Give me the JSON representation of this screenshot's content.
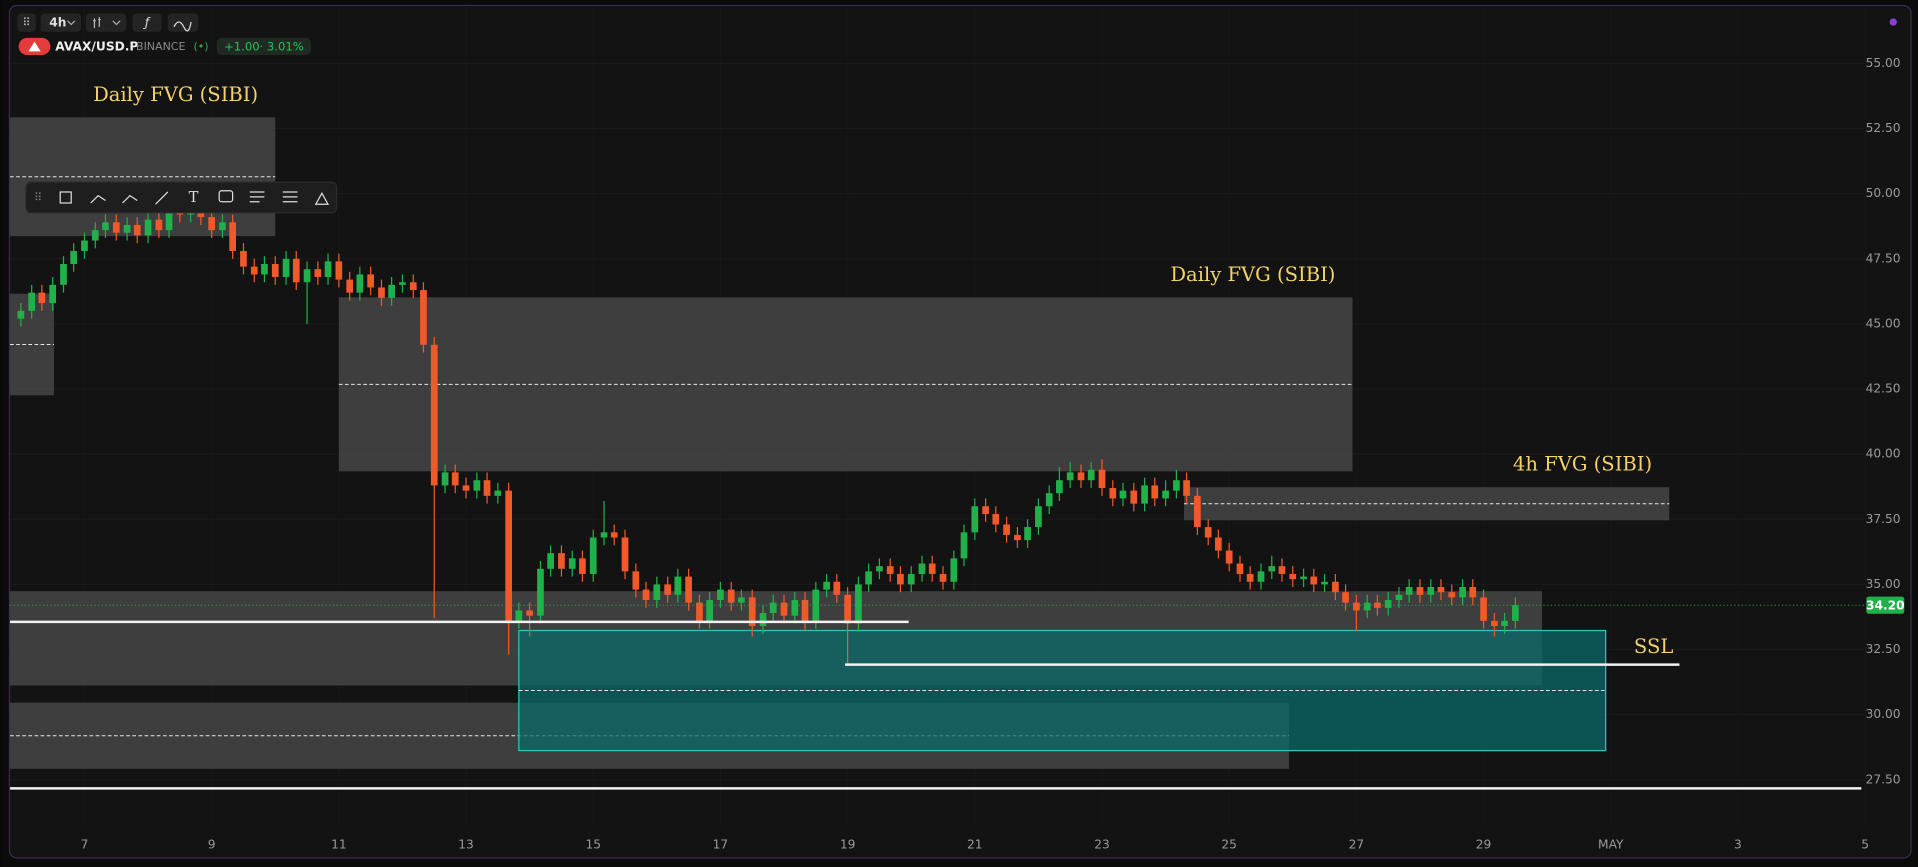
{
  "ui": {
    "interval": "4h",
    "symbol": "AVAX/USD.P",
    "exchange": "BINANCE",
    "change": "+1.00",
    "change_pct": "3.01%"
  },
  "chart_data": {
    "type": "candlestick",
    "up_color": "#22b04b",
    "down_color": "#f0592a",
    "xlim": [
      5.83,
      35.0
    ],
    "ylim": [
      25.7,
      57.2
    ],
    "xticks": [
      7,
      9,
      11,
      13,
      15,
      17,
      19,
      21,
      23,
      25,
      27,
      29,
      {
        "value": 31,
        "label": "MAY"
      },
      {
        "value": 33,
        "label": "3"
      },
      {
        "value": 35,
        "label": "5"
      }
    ],
    "yticks": [
      {
        "value": 27.5,
        "label": "27.50"
      },
      {
        "value": 30,
        "label": "30.00"
      },
      {
        "value": 32.5,
        "label": "32.50"
      },
      {
        "value": 35,
        "label": "35.00"
      },
      {
        "value": 37.5,
        "label": "37.50"
      },
      {
        "value": 40,
        "label": "40.00"
      },
      {
        "value": 42.5,
        "label": "42.50"
      },
      {
        "value": 45,
        "label": "45.00"
      },
      {
        "value": 47.5,
        "label": "47.50"
      },
      {
        "value": 50,
        "label": "50.00"
      },
      {
        "value": 52.5,
        "label": "52.50"
      },
      {
        "value": 55,
        "label": "55.00"
      }
    ],
    "last_price": {
      "value": 34.2,
      "label": "34.20"
    },
    "zones": [
      {
        "label": "Daily FVG (SIBI)",
        "x": [
          5.83,
          10.0
        ],
        "y": [
          48.37,
          52.93
        ],
        "color": "#4a4a4a"
      },
      {
        "x": [
          5.83,
          6.52
        ],
        "y": [
          42.26,
          46.16
        ],
        "color": "#4a4a4a"
      },
      {
        "label": "Daily FVG (SIBI)",
        "x": [
          11.0,
          26.94
        ],
        "y": [
          39.34,
          46.02
        ],
        "color": "#4a4a4a"
      },
      {
        "label": "4h FVG (SIBI)",
        "x": [
          24.29,
          31.92
        ],
        "y": [
          37.46,
          38.73
        ],
        "color": "#4a4a4a"
      },
      {
        "x": [
          5.83,
          29.92
        ],
        "y": [
          31.12,
          34.74
        ],
        "color": "#4a4a4a",
        "no_mid": true
      },
      {
        "x": [
          5.83,
          25.94
        ],
        "y": [
          27.92,
          30.46
        ],
        "color": "#4a4a4a"
      },
      {
        "x": [
          13.83,
          30.92
        ],
        "y": [
          28.62,
          33.23
        ],
        "color": "#0b6b6b",
        "border": "#2ec4c4"
      }
    ],
    "levels": [
      {
        "x": [
          5.83,
          19.96
        ],
        "y": 33.56
      },
      {
        "label": "SSL",
        "x": [
          18.96,
          32.08
        ],
        "y": 31.92
      },
      {
        "x": [
          5.83,
          34.94
        ],
        "y": 27.17
      }
    ],
    "x": [
      6,
      6.17,
      6.33,
      6.5,
      6.67,
      6.83,
      7,
      7.17,
      7.33,
      7.5,
      7.67,
      7.83,
      8,
      8.17,
      8.33,
      8.5,
      8.67,
      8.83,
      9,
      9.17,
      9.33,
      9.5,
      9.67,
      9.83,
      10,
      10.17,
      10.33,
      10.5,
      10.67,
      10.83,
      11,
      11.17,
      11.33,
      11.5,
      11.67,
      11.83,
      12,
      12.17,
      12.33,
      12.5,
      12.67,
      12.83,
      13,
      13.17,
      13.33,
      13.5,
      13.67,
      13.83,
      14,
      14.17,
      14.33,
      14.5,
      14.67,
      14.83,
      15,
      15.17,
      15.33,
      15.5,
      15.67,
      15.83,
      16,
      16.17,
      16.33,
      16.5,
      16.67,
      16.83,
      17,
      17.17,
      17.33,
      17.5,
      17.67,
      17.83,
      18,
      18.17,
      18.33,
      18.5,
      18.67,
      18.83,
      19,
      19.17,
      19.33,
      19.5,
      19.67,
      19.83,
      20,
      20.17,
      20.33,
      20.5,
      20.67,
      20.83,
      21,
      21.17,
      21.33,
      21.5,
      21.67,
      21.83,
      22,
      22.17,
      22.33,
      22.5,
      22.67,
      22.83,
      23,
      23.17,
      23.33,
      23.5,
      23.67,
      23.83,
      24,
      24.17,
      24.33,
      24.5,
      24.67,
      24.83,
      25,
      25.17,
      25.33,
      25.5,
      25.67,
      25.83,
      26,
      26.17,
      26.33,
      26.5,
      26.67,
      26.83,
      27,
      27.17,
      27.33,
      27.5,
      27.67,
      27.83,
      28,
      28.17,
      28.33,
      28.5,
      28.67,
      28.83,
      29,
      29.17,
      29.33,
      29.5
    ],
    "ohlc": [
      [
        45.2,
        45.8,
        44.9,
        45.5
      ],
      [
        45.5,
        46.5,
        45.2,
        46.2
      ],
      [
        46.2,
        46.5,
        45.5,
        45.8
      ],
      [
        45.8,
        46.8,
        45.5,
        46.5
      ],
      [
        46.5,
        47.6,
        46.2,
        47.3
      ],
      [
        47.3,
        48.1,
        47.0,
        47.8
      ],
      [
        47.8,
        48.5,
        47.5,
        48.2
      ],
      [
        48.2,
        48.9,
        47.9,
        48.6
      ],
      [
        48.6,
        49.2,
        48.3,
        48.9
      ],
      [
        48.9,
        49.2,
        48.2,
        48.5
      ],
      [
        48.5,
        49.1,
        48.2,
        48.8
      ],
      [
        48.8,
        49.1,
        48.1,
        48.4
      ],
      [
        48.4,
        49.3,
        48.1,
        49.0
      ],
      [
        49.0,
        49.3,
        48.3,
        48.6
      ],
      [
        48.6,
        49.7,
        48.3,
        49.4
      ],
      [
        49.4,
        49.7,
        48.9,
        49.2
      ],
      [
        49.2,
        49.9,
        48.9,
        49.6
      ],
      [
        49.6,
        49.9,
        48.8,
        49.1
      ],
      [
        49.1,
        49.4,
        48.3,
        48.6
      ],
      [
        48.6,
        49.2,
        48.3,
        48.9
      ],
      [
        48.9,
        49.2,
        47.5,
        47.8
      ],
      [
        47.8,
        48.1,
        46.9,
        47.2
      ],
      [
        47.2,
        47.5,
        46.6,
        46.9
      ],
      [
        46.9,
        47.6,
        46.6,
        47.3
      ],
      [
        47.3,
        47.6,
        46.5,
        46.8
      ],
      [
        46.8,
        47.8,
        46.5,
        47.5
      ],
      [
        47.5,
        47.8,
        46.3,
        46.6
      ],
      [
        46.6,
        47.4,
        45.0,
        47.1
      ],
      [
        47.1,
        47.4,
        46.5,
        46.8
      ],
      [
        46.8,
        47.7,
        46.5,
        47.4
      ],
      [
        47.4,
        47.7,
        46.4,
        46.7
      ],
      [
        46.7,
        47.0,
        45.9,
        46.2
      ],
      [
        46.2,
        47.2,
        45.9,
        46.9
      ],
      [
        46.9,
        47.2,
        46.1,
        46.4
      ],
      [
        46.4,
        46.7,
        45.7,
        46.0
      ],
      [
        46.0,
        46.8,
        45.7,
        46.5
      ],
      [
        46.5,
        46.9,
        46.2,
        46.6
      ],
      [
        46.6,
        46.9,
        46.0,
        46.3
      ],
      [
        46.3,
        46.6,
        43.9,
        44.2
      ],
      [
        44.2,
        44.5,
        33.7,
        38.8
      ],
      [
        38.8,
        39.6,
        38.5,
        39.3
      ],
      [
        39.3,
        39.6,
        38.5,
        38.8
      ],
      [
        38.8,
        39.1,
        38.3,
        38.6
      ],
      [
        38.6,
        39.3,
        38.3,
        39.0
      ],
      [
        39.0,
        39.3,
        38.1,
        38.4
      ],
      [
        38.4,
        38.9,
        38.1,
        38.6
      ],
      [
        38.6,
        38.9,
        32.3,
        33.6
      ],
      [
        33.6,
        34.3,
        33.3,
        34.0
      ],
      [
        34.0,
        34.3,
        33.0,
        33.8
      ],
      [
        33.8,
        35.9,
        33.5,
        35.6
      ],
      [
        35.6,
        36.5,
        35.3,
        36.2
      ],
      [
        36.2,
        36.5,
        35.3,
        35.6
      ],
      [
        35.6,
        36.3,
        35.3,
        36.0
      ],
      [
        36.0,
        36.3,
        35.1,
        35.4
      ],
      [
        35.4,
        37.1,
        35.1,
        36.8
      ],
      [
        36.8,
        38.2,
        36.5,
        37.0
      ],
      [
        37.0,
        37.3,
        36.5,
        36.8
      ],
      [
        36.8,
        37.1,
        35.2,
        35.5
      ],
      [
        35.5,
        35.8,
        34.5,
        34.8
      ],
      [
        34.8,
        35.1,
        34.1,
        34.4
      ],
      [
        34.4,
        35.3,
        34.1,
        35.0
      ],
      [
        35.0,
        35.3,
        34.3,
        34.6
      ],
      [
        34.6,
        35.6,
        34.3,
        35.3
      ],
      [
        35.3,
        35.6,
        34.0,
        34.3
      ],
      [
        34.3,
        34.6,
        33.3,
        33.6
      ],
      [
        33.6,
        34.7,
        33.3,
        34.4
      ],
      [
        34.4,
        35.1,
        34.1,
        34.8
      ],
      [
        34.8,
        35.1,
        34.0,
        34.3
      ],
      [
        34.3,
        34.8,
        34.0,
        34.5
      ],
      [
        34.5,
        34.8,
        33.0,
        33.4
      ],
      [
        33.4,
        34.2,
        33.1,
        33.9
      ],
      [
        33.9,
        34.6,
        33.6,
        34.3
      ],
      [
        34.3,
        34.6,
        33.5,
        33.8
      ],
      [
        33.8,
        34.7,
        33.5,
        34.4
      ],
      [
        34.4,
        34.7,
        33.2,
        33.6
      ],
      [
        33.6,
        35.1,
        33.3,
        34.8
      ],
      [
        34.8,
        35.4,
        34.5,
        35.1
      ],
      [
        35.1,
        35.4,
        34.3,
        34.6
      ],
      [
        34.6,
        34.9,
        31.9,
        33.5
      ],
      [
        33.5,
        35.3,
        33.2,
        35.0
      ],
      [
        35.0,
        35.8,
        34.7,
        35.5
      ],
      [
        35.5,
        36.0,
        35.2,
        35.7
      ],
      [
        35.7,
        36.0,
        35.1,
        35.4
      ],
      [
        35.4,
        35.7,
        34.7,
        35.0
      ],
      [
        35.0,
        35.7,
        34.7,
        35.4
      ],
      [
        35.4,
        36.1,
        35.1,
        35.8
      ],
      [
        35.8,
        36.1,
        35.1,
        35.4
      ],
      [
        35.4,
        35.7,
        34.8,
        35.1
      ],
      [
        35.1,
        36.3,
        34.8,
        36.0
      ],
      [
        36.0,
        37.3,
        35.7,
        37.0
      ],
      [
        37.0,
        38.3,
        36.7,
        38.0
      ],
      [
        38.0,
        38.3,
        37.4,
        37.7
      ],
      [
        37.7,
        38.0,
        37.0,
        37.3
      ],
      [
        37.3,
        37.6,
        36.6,
        36.9
      ],
      [
        36.9,
        37.2,
        36.4,
        36.7
      ],
      [
        36.7,
        37.5,
        36.4,
        37.2
      ],
      [
        37.2,
        38.3,
        36.9,
        38.0
      ],
      [
        38.0,
        38.8,
        37.7,
        38.5
      ],
      [
        38.5,
        39.5,
        38.2,
        39.0
      ],
      [
        39.0,
        39.7,
        38.7,
        39.3
      ],
      [
        39.3,
        39.6,
        38.7,
        39.0
      ],
      [
        39.0,
        39.7,
        38.7,
        39.4
      ],
      [
        39.4,
        39.8,
        38.4,
        38.7
      ],
      [
        38.7,
        39.0,
        38.0,
        38.3
      ],
      [
        38.3,
        38.9,
        38.0,
        38.6
      ],
      [
        38.6,
        38.9,
        37.8,
        38.1
      ],
      [
        38.1,
        39.1,
        37.8,
        38.8
      ],
      [
        38.8,
        39.1,
        38.0,
        38.3
      ],
      [
        38.3,
        39.0,
        38.0,
        38.6
      ],
      [
        38.6,
        39.4,
        38.3,
        39.0
      ],
      [
        39.0,
        39.3,
        38.1,
        38.4
      ],
      [
        38.4,
        38.7,
        36.9,
        37.2
      ],
      [
        37.2,
        37.5,
        36.5,
        36.8
      ],
      [
        36.8,
        37.1,
        36.0,
        36.3
      ],
      [
        36.3,
        36.6,
        35.5,
        35.8
      ],
      [
        35.8,
        36.1,
        35.1,
        35.4
      ],
      [
        35.4,
        35.7,
        34.8,
        35.1
      ],
      [
        35.1,
        35.8,
        34.8,
        35.5
      ],
      [
        35.5,
        36.1,
        35.2,
        35.7
      ],
      [
        35.7,
        36.0,
        35.1,
        35.4
      ],
      [
        35.4,
        35.7,
        34.9,
        35.2
      ],
      [
        35.2,
        35.6,
        34.9,
        35.3
      ],
      [
        35.3,
        35.6,
        34.7,
        35.0
      ],
      [
        35.0,
        35.4,
        34.7,
        35.1
      ],
      [
        35.1,
        35.4,
        34.4,
        34.7
      ],
      [
        34.7,
        35.0,
        34.0,
        34.3
      ],
      [
        34.3,
        34.6,
        33.2,
        34.0
      ],
      [
        34.0,
        34.6,
        33.7,
        34.3
      ],
      [
        34.3,
        34.6,
        33.8,
        34.1
      ],
      [
        34.1,
        34.7,
        33.8,
        34.4
      ],
      [
        34.4,
        34.9,
        34.1,
        34.6
      ],
      [
        34.6,
        35.2,
        34.3,
        34.9
      ],
      [
        34.9,
        35.2,
        34.3,
        34.6
      ],
      [
        34.6,
        35.2,
        34.3,
        34.9
      ],
      [
        34.9,
        35.2,
        34.4,
        34.7
      ],
      [
        34.7,
        35.0,
        34.2,
        34.5
      ],
      [
        34.5,
        35.2,
        34.2,
        34.9
      ],
      [
        34.9,
        35.2,
        34.2,
        34.5
      ],
      [
        34.5,
        34.8,
        33.3,
        33.6
      ],
      [
        33.6,
        33.9,
        33.0,
        33.4
      ],
      [
        33.4,
        33.9,
        33.1,
        33.6
      ],
      [
        33.6,
        34.5,
        33.3,
        34.2
      ]
    ]
  }
}
